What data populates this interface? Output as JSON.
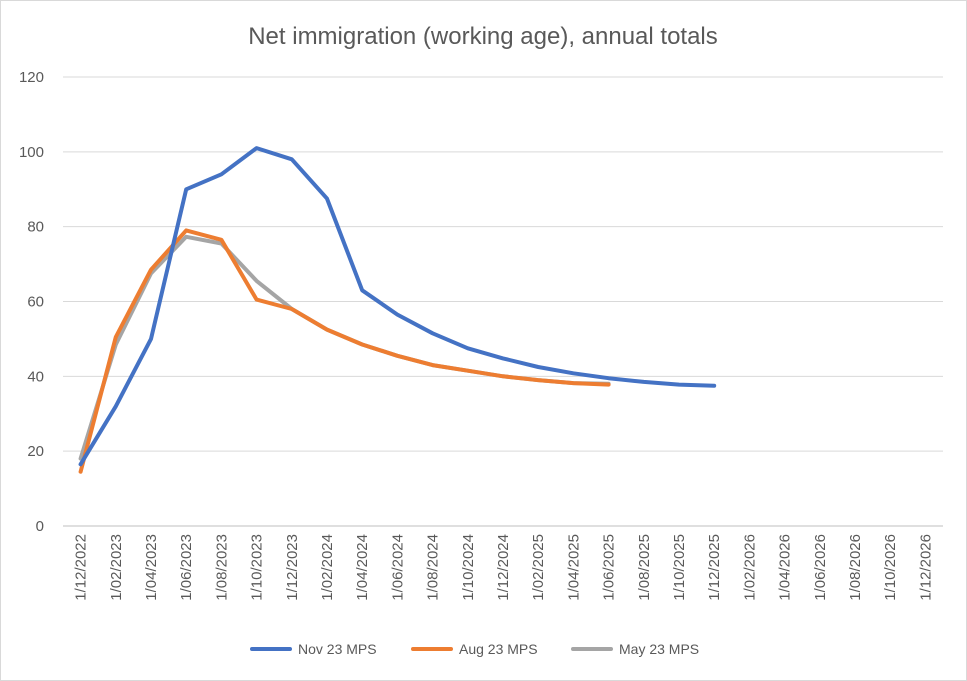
{
  "chart_data": {
    "type": "line",
    "title": "Net immigration (working age), annual totals",
    "xlabel": "",
    "ylabel": "",
    "ylim": [
      0,
      120
    ],
    "yticks": [
      0,
      20,
      40,
      60,
      80,
      100,
      120
    ],
    "grid": true,
    "legend_position": "bottom",
    "categories": [
      "1/12/2022",
      "1/02/2023",
      "1/04/2023",
      "1/06/2023",
      "1/08/2023",
      "1/10/2023",
      "1/12/2023",
      "1/02/2024",
      "1/04/2024",
      "1/06/2024",
      "1/08/2024",
      "1/10/2024",
      "1/12/2024",
      "1/02/2025",
      "1/04/2025",
      "1/06/2025",
      "1/08/2025",
      "1/10/2025",
      "1/12/2025",
      "1/02/2026",
      "1/04/2026",
      "1/06/2026",
      "1/08/2026",
      "1/10/2026",
      "1/12/2026"
    ],
    "series": [
      {
        "name": "Nov 23 MPS",
        "color": "#4472c4",
        "points": [
          [
            0,
            16.5
          ],
          [
            1,
            32
          ],
          [
            2,
            50
          ],
          [
            3,
            90
          ],
          [
            4,
            94
          ],
          [
            5,
            101
          ],
          [
            6,
            98
          ],
          [
            7,
            87.5
          ],
          [
            8,
            63
          ],
          [
            9,
            56.5
          ],
          [
            10,
            51.5
          ],
          [
            11,
            47.5
          ],
          [
            12,
            44.8
          ],
          [
            13,
            42.5
          ],
          [
            14,
            40.8
          ],
          [
            15,
            39.5
          ],
          [
            16,
            38.5
          ],
          [
            17,
            37.8
          ],
          [
            18,
            37.5
          ]
        ]
      },
      {
        "name": "Aug 23 MPS",
        "color": "#ed7d31",
        "points": [
          [
            0,
            14.5
          ],
          [
            1,
            50.5
          ],
          [
            2,
            68.5
          ],
          [
            3,
            79
          ],
          [
            4,
            76.5
          ],
          [
            5,
            60.5
          ],
          [
            6,
            58
          ],
          [
            7,
            52.5
          ],
          [
            8,
            48.5
          ],
          [
            9,
            45.5
          ],
          [
            10,
            43
          ],
          [
            11,
            41.5
          ],
          [
            12,
            40
          ],
          [
            13,
            39
          ],
          [
            14,
            38.2
          ],
          [
            15,
            37.8
          ]
        ]
      },
      {
        "name": "May 23 MPS",
        "color": "#a5a5a5",
        "points": [
          [
            0,
            18
          ],
          [
            1,
            48.5
          ],
          [
            2,
            67.5
          ],
          [
            3,
            77.3
          ],
          [
            4,
            75.5
          ],
          [
            5,
            65.5
          ],
          [
            6,
            58
          ],
          [
            7,
            52.5
          ],
          [
            8,
            48.5
          ],
          [
            9,
            45.5
          ],
          [
            10,
            43
          ],
          [
            11,
            41.5
          ],
          [
            12,
            40
          ],
          [
            13,
            39
          ],
          [
            14,
            38.2
          ],
          [
            15,
            38
          ]
        ]
      }
    ]
  }
}
